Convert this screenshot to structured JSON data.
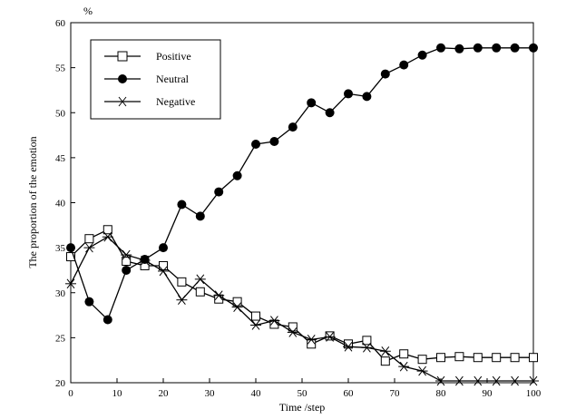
{
  "chart_data": {
    "type": "line",
    "title": "",
    "xlabel": "Time /step",
    "ylabel": "The proportion of the emotion",
    "y_unit": "%",
    "xlim": [
      0,
      100
    ],
    "ylim": [
      20,
      60
    ],
    "xticks": [
      0,
      10,
      20,
      30,
      40,
      50,
      60,
      70,
      80,
      90,
      100
    ],
    "yticks": [
      20,
      25,
      30,
      35,
      40,
      45,
      50,
      55,
      60
    ],
    "grid": false,
    "legend_position": "top-left",
    "x": [
      0,
      4,
      8,
      12,
      16,
      20,
      24,
      28,
      32,
      36,
      40,
      44,
      48,
      52,
      56,
      60,
      64,
      68,
      72,
      76,
      80,
      84,
      88,
      92,
      96,
      100
    ],
    "series": [
      {
        "name": "Positive",
        "marker": "open-square",
        "values": [
          34.0,
          36.0,
          37.0,
          33.5,
          33.0,
          33.0,
          31.2,
          30.1,
          29.3,
          29.0,
          27.4,
          26.5,
          26.2,
          24.3,
          25.2,
          24.3,
          24.7,
          22.4,
          23.2,
          22.6,
          22.8,
          22.9,
          22.8,
          22.8,
          22.8,
          22.8
        ]
      },
      {
        "name": "Neutral",
        "marker": "filled-circle",
        "values": [
          35.0,
          29.0,
          27.0,
          32.5,
          33.7,
          35.0,
          39.8,
          38.5,
          41.2,
          43.0,
          46.5,
          46.8,
          48.4,
          51.1,
          50.0,
          52.1,
          51.8,
          54.3,
          55.3,
          56.4,
          57.2,
          57.1,
          57.2,
          57.2,
          57.2,
          57.2
        ]
      },
      {
        "name": "Negative",
        "marker": "asterisk",
        "values": [
          31.0,
          35.0,
          36.2,
          34.2,
          33.6,
          32.4,
          29.2,
          31.5,
          29.7,
          28.4,
          26.4,
          26.9,
          25.6,
          24.8,
          25.1,
          24.0,
          23.9,
          23.5,
          21.8,
          21.3,
          20.2,
          20.2,
          20.2,
          20.2,
          20.2,
          20.2
        ]
      }
    ]
  }
}
